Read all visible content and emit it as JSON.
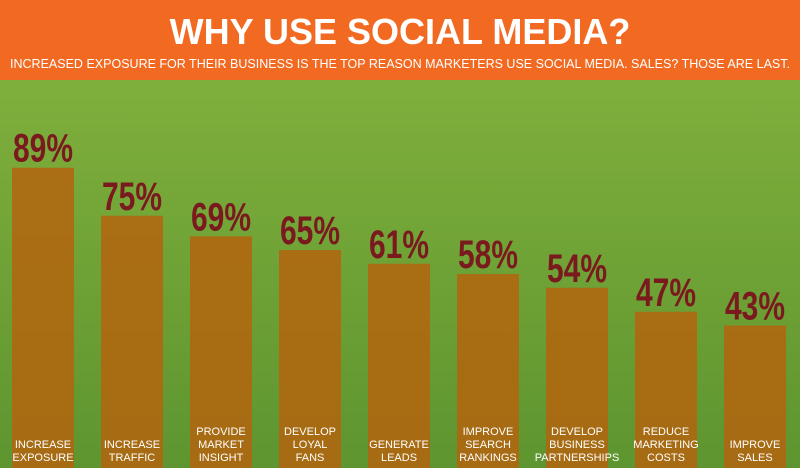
{
  "chart_data": {
    "type": "bar",
    "title": "WHY USE SOCIAL MEDIA?",
    "subtitle": "INCREASED EXPOSURE FOR THEIR BUSINESS IS THE TOP REASON MARKETERS USE SOCIAL MEDIA. SALES? THOSE ARE LAST.",
    "categories": [
      "INCREASE EXPOSURE",
      "INCREASE TRAFFIC",
      "PROVIDE MARKET INSIGHT",
      "DEVELOP LOYAL FANS",
      "GENERATE LEADS",
      "IMPROVE SEARCH RANKINGS",
      "DEVELOP BUSINESS PARTNERSHIPS",
      "REDUCE MARKETING COSTS",
      "IMPROVE SALES"
    ],
    "values": [
      89,
      75,
      69,
      65,
      61,
      58,
      54,
      47,
      43
    ],
    "value_labels": [
      "89%",
      "75%",
      "69%",
      "65%",
      "61%",
      "58%",
      "54%",
      "47%",
      "43%"
    ],
    "color": "#b4640e"
  }
}
